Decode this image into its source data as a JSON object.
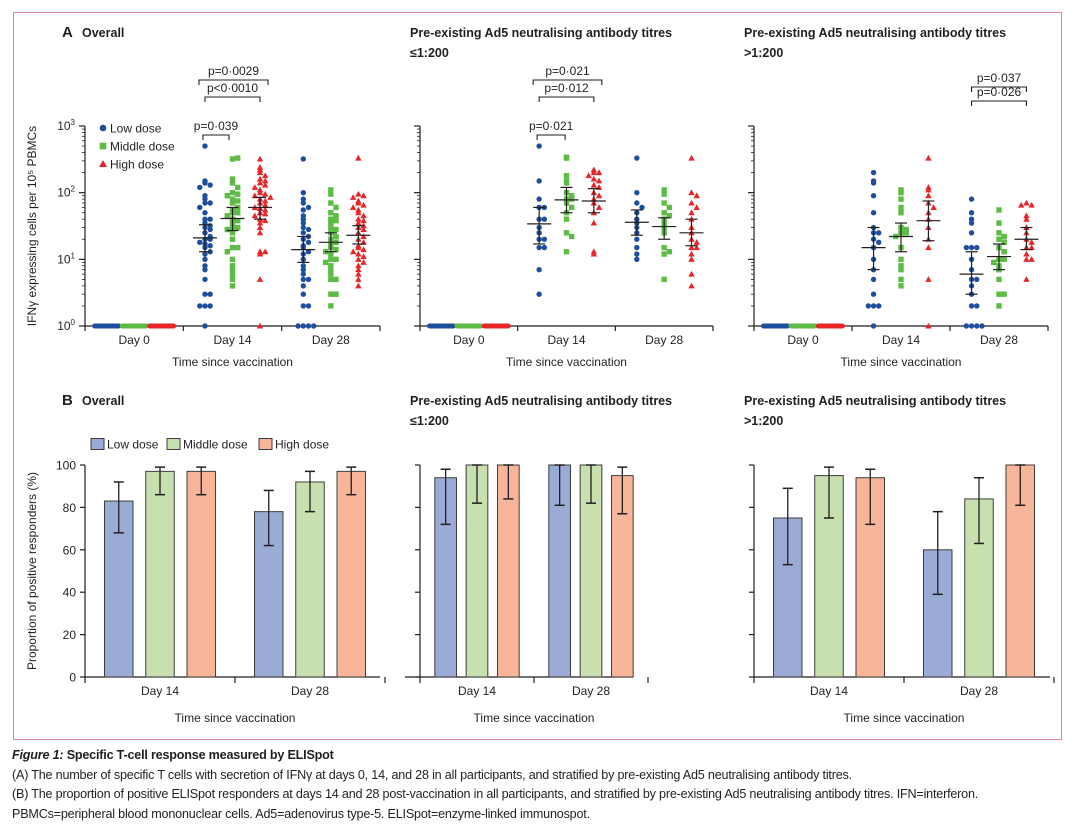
{
  "figure": {
    "caption_title_italic": "Figure 1:",
    "caption_title": " Specific T-cell response measured by ELISpot",
    "caption_lines": [
      "(A) The number of specific T cells with secretion of IFNγ at days 0, 14, and 28 in all participants, and stratified by pre-existing Ad5 neutralising antibody titres.",
      "(B) The proportion of positive ELISpot responders at days 14 and 28 post-vaccination in all participants, and stratified by pre-existing Ad5 neutralising antibody titres. IFN=interferon. PBMCs=peripheral blood mononuclear cells. Ad5=adenovirus type-5. ELISpot=enzyme-linked immunospot."
    ],
    "colors": {
      "low": "#1f4e9c",
      "middle": "#5dbb46",
      "high": "#e8262a",
      "low_bar": "#9aabd6",
      "middle_bar": "#c8e0b0",
      "high_bar": "#f7b59a",
      "frame": "#d9879f"
    }
  },
  "chart_data": [
    {
      "id": "A1",
      "panel_letter": "A",
      "type": "scatter",
      "title_lines": [
        "Overall"
      ],
      "ylabel": "IFNγ expressing cells per 10⁵ PBMCs",
      "xlabel": "Time since vaccination",
      "yscale": "log",
      "ylim": [
        1,
        1000
      ],
      "ytick_labels": [
        "10⁰",
        "10¹",
        "10²",
        "10³"
      ],
      "categories": [
        "Day 0",
        "Day 14",
        "Day 28"
      ],
      "legend": {
        "placement": "top-left",
        "entries": [
          {
            "label": "Low dose",
            "marker": "circle"
          },
          {
            "label": "Middle dose",
            "marker": "square"
          },
          {
            "label": "High dose",
            "marker": "triangle"
          }
        ]
      },
      "series": [
        {
          "name": "Low dose",
          "points": {
            "Day 0": [
              1,
              1,
              1,
              1,
              1,
              1,
              1,
              1,
              1,
              1
            ],
            "Day 14": [
              500,
              150,
              140,
              130,
              120,
              90,
              80,
              70,
              70,
              60,
              50,
              40,
              40,
              35,
              32,
              30,
              28,
              25,
              22,
              20,
              20,
              18,
              17,
              16,
              15,
              13,
              12,
              10,
              8,
              7,
              5,
              3,
              3,
              2,
              2,
              2,
              1
            ],
            "Day 28": [
              320,
              100,
              80,
              70,
              60,
              55,
              45,
              40,
              35,
              30,
              28,
              25,
              22,
              20,
              18,
              16,
              15,
              13,
              12,
              10,
              8,
              7,
              6,
              5,
              5,
              4,
              3,
              2,
              2,
              1,
              1,
              1,
              1
            ]
          },
          "mean": {
            "Day 14": 21,
            "Day 28": 14
          },
          "ci": {
            "Day 14": [
              13,
              33
            ],
            "Day 28": [
              9,
              22
            ]
          }
        },
        {
          "name": "Middle dose",
          "points": {
            "Day 0": [
              1,
              1,
              1,
              1,
              1,
              1,
              1,
              1,
              1,
              1
            ],
            "Day 14": [
              320,
              330,
              160,
              140,
              120,
              100,
              95,
              90,
              80,
              75,
              70,
              60,
              55,
              50,
              50,
              45,
              40,
              38,
              35,
              30,
              30,
              28,
              25,
              20,
              15,
              15,
              13,
              10,
              8,
              7,
              6,
              5,
              4
            ],
            "Day 28": [
              110,
              95,
              70,
              60,
              50,
              45,
              40,
              38,
              35,
              30,
              28,
              25,
              22,
              20,
              18,
              16,
              15,
              14,
              13,
              12,
              10,
              10,
              9,
              8,
              7,
              6,
              5,
              5,
              3,
              3,
              2
            ]
          },
          "mean": {
            "Day 14": 41,
            "Day 28": 18
          },
          "ci": {
            "Day 14": [
              27,
              60
            ],
            "Day 28": [
              13,
              25
            ]
          }
        },
        {
          "name": "High dose",
          "points": {
            "Day 0": [
              1,
              1,
              1,
              1,
              1,
              1,
              1,
              1
            ],
            "Day 14": [
              320,
              240,
              220,
              200,
              180,
              160,
              150,
              140,
              130,
              120,
              110,
              100,
              95,
              90,
              85,
              80,
              75,
              70,
              65,
              60,
              58,
              55,
              50,
              48,
              45,
              40,
              38,
              35,
              30,
              25,
              13,
              12,
              13,
              5,
              1
            ],
            "Day 28": [
              330,
              95,
              90,
              85,
              75,
              70,
              65,
              60,
              55,
              50,
              45,
              40,
              38,
              35,
              32,
              30,
              28,
              25,
              22,
              20,
              18,
              16,
              15,
              14,
              13,
              12,
              11,
              10,
              9,
              8,
              7,
              6,
              5,
              4
            ]
          },
          "mean": {
            "Day 14": 60,
            "Day 28": 23
          },
          "ci": {
            "Day 14": [
              40,
              85
            ],
            "Day 28": [
              17,
              32
            ]
          }
        }
      ],
      "annotations": [
        {
          "text": "p=0·039",
          "from": "Low dose",
          "to": "Middle dose",
          "category": "Day 14",
          "level": 1
        },
        {
          "text": "p<0·0010",
          "from": "Low dose",
          "to": "High dose",
          "category": "Day 14",
          "level": 2
        },
        {
          "text": "p=0·0029",
          "from": "Low dose",
          "to": "High dose",
          "category": "Day 14",
          "level": 3
        }
      ]
    },
    {
      "id": "A2",
      "type": "scatter",
      "title_lines": [
        "Pre-existing Ad5 neutralising antibody titres",
        "≤1:200"
      ],
      "xlabel": "Time since vaccination",
      "yscale": "log",
      "ylim": [
        1,
        1000
      ],
      "categories": [
        "Day 0",
        "Day 14",
        "Day 28"
      ],
      "series": [
        {
          "name": "Low dose",
          "points": {
            "Day 0": [
              1,
              1,
              1,
              1,
              1,
              1
            ],
            "Day 14": [
              500,
              150,
              80,
              60,
              60,
              40,
              40,
              30,
              25,
              20,
              20,
              15,
              15,
              7,
              3
            ],
            "Day 28": [
              330,
              100,
              70,
              60,
              50,
              40,
              35,
              30,
              25,
              20,
              15,
              12,
              10
            ]
          },
          "mean": {
            "Day 14": 34,
            "Day 28": 36
          },
          "ci": {
            "Day 14": [
              17,
              60
            ],
            "Day 28": [
              23,
              55
            ]
          }
        },
        {
          "name": "Middle dose",
          "points": {
            "Day 0": [
              1,
              1,
              1,
              1,
              1,
              1
            ],
            "Day 14": [
              330,
              340,
              180,
              150,
              140,
              100,
              90,
              80,
              80,
              70,
              60,
              50,
              40,
              25,
              22,
              13
            ],
            "Day 28": [
              110,
              95,
              70,
              60,
              50,
              45,
              40,
              35,
              30,
              25,
              15,
              13,
              12,
              5
            ]
          },
          "mean": {
            "Day 14": 78,
            "Day 28": 31
          },
          "ci": {
            "Day 14": [
              50,
              120
            ],
            "Day 28": [
              20,
              42
            ]
          }
        },
        {
          "name": "High dose",
          "points": {
            "Day 0": [
              1,
              1,
              1,
              1,
              1,
              1
            ],
            "Day 14": [
              220,
              200,
              200,
              180,
              160,
              150,
              130,
              120,
              100,
              90,
              80,
              70,
              60,
              50,
              35,
              12,
              13
            ],
            "Day 28": [
              330,
              100,
              90,
              70,
              60,
              50,
              40,
              30,
              25,
              20,
              18,
              15,
              15,
              12,
              10,
              6,
              4
            ]
          },
          "mean": {
            "Day 14": 75,
            "Day 28": 25
          },
          "ci": {
            "Day 14": [
              50,
              115
            ],
            "Day 28": [
              16,
              40
            ]
          }
        }
      ],
      "annotations": [
        {
          "text": "p=0·021",
          "from": "Low dose",
          "to": "Middle dose",
          "category": "Day 14",
          "level": 1
        },
        {
          "text": "p=0·012",
          "from": "Low dose",
          "to": "High dose",
          "category": "Day 14",
          "level": 2
        },
        {
          "text": "p=0·021",
          "from": "Low dose",
          "to": "High dose",
          "category": "Day 14",
          "level": 3
        }
      ]
    },
    {
      "id": "A3",
      "type": "scatter",
      "title_lines": [
        "Pre-existing Ad5 neutralising antibody titres",
        ">1:200"
      ],
      "xlabel": "Time since vaccination",
      "yscale": "log",
      "ylim": [
        1,
        1000
      ],
      "categories": [
        "Day 0",
        "Day 14",
        "Day 28"
      ],
      "series": [
        {
          "name": "Low dose",
          "points": {
            "Day 0": [
              1,
              1,
              1,
              1,
              1
            ],
            "Day 14": [
              200,
              150,
              140,
              90,
              50,
              30,
              25,
              25,
              20,
              18,
              15,
              10,
              7,
              5,
              3,
              2,
              2,
              2,
              1
            ],
            "Day 28": [
              80,
              50,
              40,
              35,
              25,
              15,
              15,
              15,
              10,
              7,
              5,
              5,
              4,
              3,
              2,
              2,
              1,
              1,
              1,
              1
            ]
          },
          "mean": {
            "Day 14": 15,
            "Day 28": 6
          },
          "ci": {
            "Day 14": [
              7,
              30
            ],
            "Day 28": [
              3,
              13
            ]
          }
        },
        {
          "name": "Middle dose",
          "points": {
            "Day 0": [
              1,
              1,
              1,
              1,
              1
            ],
            "Day 14": [
              110,
              100,
              80,
              60,
              50,
              30,
              28,
              25,
              25,
              22,
              15,
              10,
              8,
              7,
              5,
              4
            ],
            "Day 28": [
              55,
              35,
              25,
              22,
              20,
              18,
              15,
              13,
              10,
              10,
              9,
              8,
              7,
              5,
              3,
              3,
              2
            ]
          },
          "mean": {
            "Day 14": 22,
            "Day 28": 11
          },
          "ci": {
            "Day 14": [
              13,
              35
            ],
            "Day 28": [
              7,
              17
            ]
          }
        },
        {
          "name": "High dose",
          "points": {
            "Day 0": [
              1,
              1,
              1,
              1,
              1
            ],
            "Day 14": [
              330,
              120,
              110,
              90,
              70,
              60,
              50,
              40,
              30,
              20,
              15,
              5,
              1
            ],
            "Day 28": [
              70,
              65,
              65,
              45,
              40,
              30,
              25,
              20,
              18,
              15,
              15,
              12,
              10,
              10,
              5
            ]
          },
          "mean": {
            "Day 14": 38,
            "Day 28": 20
          },
          "ci": {
            "Day 14": [
              19,
              75
            ],
            "Day 28": [
              14,
              30
            ]
          }
        }
      ],
      "annotations": [
        {
          "text": "p=0·026",
          "from": "Low dose",
          "to": "High dose",
          "category": "Day 28",
          "level": 1
        },
        {
          "text": "p=0·037",
          "from": "Low dose",
          "to": "High dose",
          "category": "Day 28",
          "level": 2
        }
      ]
    },
    {
      "id": "B1",
      "panel_letter": "B",
      "type": "bar",
      "title_lines": [
        "Overall"
      ],
      "ylabel": "Proportion of positive responders (%)",
      "xlabel": "Time since vaccination",
      "ylim": [
        0,
        100
      ],
      "yticks": [
        0,
        20,
        40,
        60,
        80,
        100
      ],
      "categories": [
        "Day 14",
        "Day 28"
      ],
      "legend": {
        "placement": "top",
        "entries": [
          "Low dose",
          "Middle dose",
          "High dose"
        ]
      },
      "series": [
        {
          "name": "Low dose",
          "values": [
            83,
            78
          ],
          "err": [
            [
              68,
              92
            ],
            [
              62,
              88
            ]
          ]
        },
        {
          "name": "Middle dose",
          "values": [
            97,
            92
          ],
          "err": [
            [
              86,
              99
            ],
            [
              78,
              97
            ]
          ]
        },
        {
          "name": "High dose",
          "values": [
            97,
            97
          ],
          "err": [
            [
              86,
              99
            ],
            [
              86,
              99
            ]
          ]
        }
      ]
    },
    {
      "id": "B2",
      "type": "bar",
      "title_lines": [
        "Pre-existing Ad5 neutralising antibody titres",
        "≤1:200"
      ],
      "xlabel": "Time since vaccination",
      "ylim": [
        0,
        100
      ],
      "categories": [
        "Day 14",
        "Day 28"
      ],
      "series": [
        {
          "name": "Low dose",
          "values": [
            94,
            100
          ],
          "err": [
            [
              72,
              98
            ],
            [
              81,
              100
            ]
          ]
        },
        {
          "name": "Middle dose",
          "values": [
            100,
            100
          ],
          "err": [
            [
              82,
              100
            ],
            [
              82,
              100
            ]
          ]
        },
        {
          "name": "High dose",
          "values": [
            100,
            95
          ],
          "err": [
            [
              84,
              100
            ],
            [
              77,
              99
            ]
          ]
        }
      ]
    },
    {
      "id": "B3",
      "type": "bar",
      "title_lines": [
        "Pre-existing Ad5 neutralising antibody titres",
        ">1:200"
      ],
      "xlabel": "Time since vaccination",
      "ylim": [
        0,
        100
      ],
      "categories": [
        "Day 14",
        "Day 28"
      ],
      "series": [
        {
          "name": "Low dose",
          "values": [
            75,
            60
          ],
          "err": [
            [
              53,
              89
            ],
            [
              39,
              78
            ]
          ]
        },
        {
          "name": "Middle dose",
          "values": [
            95,
            84
          ],
          "err": [
            [
              75,
              99
            ],
            [
              63,
              94
            ]
          ]
        },
        {
          "name": "High dose",
          "values": [
            94,
            100
          ],
          "err": [
            [
              72,
              98
            ],
            [
              81,
              100
            ]
          ]
        }
      ]
    }
  ]
}
